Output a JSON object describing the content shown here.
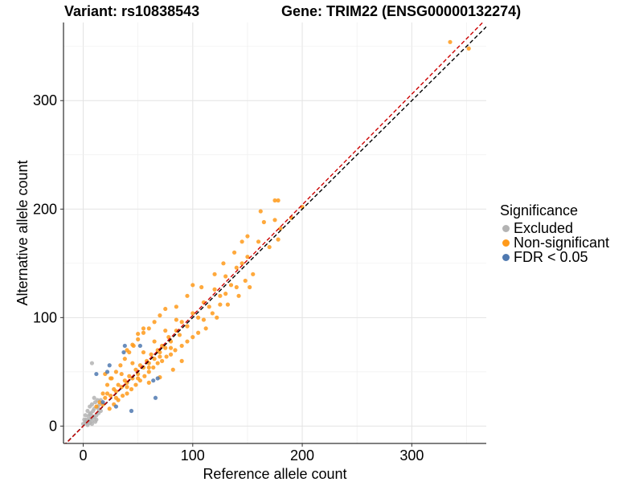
{
  "header": {
    "variant_title": "Variant: rs10838543",
    "gene_title": "Gene: TRIM22 (ENSG00000132274)"
  },
  "chart_data": {
    "type": "scatter",
    "xlabel": "Reference allele count",
    "ylabel": "Alternative allele count",
    "xlim": [
      -18,
      368
    ],
    "ylim": [
      -16,
      372
    ],
    "xticks": [
      0,
      100,
      200,
      300
    ],
    "yticks": [
      0,
      100,
      200,
      300
    ],
    "grid": true,
    "legend": {
      "title": "Significance",
      "position": "right",
      "entries": [
        {
          "label": "Excluded",
          "color": "#b3b3b3"
        },
        {
          "label": "Non-significant",
          "color": "#ff9a1a"
        },
        {
          "label": "FDR < 0.05",
          "color": "#4f79b0"
        }
      ]
    },
    "reference_lines": [
      {
        "type": "identity",
        "description": "y = x",
        "color": "#000000",
        "style": "dashed"
      },
      {
        "type": "fit",
        "slope": 1.02,
        "intercept": 0,
        "color": "#cc0000",
        "style": "dashed"
      }
    ],
    "series": [
      {
        "name": "Excluded",
        "color": "#b3b3b3",
        "points": [
          [
            0,
            2
          ],
          [
            2,
            4
          ],
          [
            3,
            6
          ],
          [
            4,
            1
          ],
          [
            5,
            9
          ],
          [
            6,
            3
          ],
          [
            7,
            12
          ],
          [
            8,
            5
          ],
          [
            9,
            14
          ],
          [
            10,
            8
          ],
          [
            2,
            10
          ],
          [
            4,
            14
          ],
          [
            6,
            18
          ],
          [
            8,
            20
          ],
          [
            10,
            16
          ],
          [
            12,
            10
          ],
          [
            11,
            22
          ],
          [
            13,
            18
          ],
          [
            14,
            12
          ],
          [
            15,
            20
          ],
          [
            16,
            24
          ],
          [
            3,
            3
          ],
          [
            5,
            5
          ],
          [
            7,
            7
          ],
          [
            9,
            9
          ],
          [
            1,
            6
          ],
          [
            6,
            11
          ],
          [
            8,
            2
          ],
          [
            12,
            6
          ],
          [
            14,
            16
          ],
          [
            10,
            26
          ],
          [
            8,
            58
          ],
          [
            16,
            14
          ],
          [
            11,
            4
          ],
          [
            13,
            24
          ]
        ]
      },
      {
        "name": "Non-significant",
        "color": "#ff9a1a",
        "points": [
          [
            12,
            18
          ],
          [
            15,
            22
          ],
          [
            18,
            20
          ],
          [
            20,
            26
          ],
          [
            22,
            30
          ],
          [
            25,
            28
          ],
          [
            28,
            34
          ],
          [
            30,
            32
          ],
          [
            32,
            38
          ],
          [
            35,
            36
          ],
          [
            38,
            42
          ],
          [
            40,
            40
          ],
          [
            42,
            46
          ],
          [
            45,
            44
          ],
          [
            48,
            52
          ],
          [
            50,
            48
          ],
          [
            52,
            56
          ],
          [
            55,
            54
          ],
          [
            58,
            60
          ],
          [
            60,
            58
          ],
          [
            62,
            66
          ],
          [
            65,
            62
          ],
          [
            68,
            70
          ],
          [
            70,
            68
          ],
          [
            72,
            74
          ],
          [
            75,
            72
          ],
          [
            78,
            82
          ],
          [
            80,
            78
          ],
          [
            85,
            88
          ],
          [
            88,
            84
          ],
          [
            90,
            96
          ],
          [
            95,
            92
          ],
          [
            100,
            104
          ],
          [
            105,
            100
          ],
          [
            110,
            114
          ],
          [
            115,
            110
          ],
          [
            120,
            126
          ],
          [
            125,
            120
          ],
          [
            130,
            138
          ],
          [
            135,
            130
          ],
          [
            140,
            146
          ],
          [
            145,
            150
          ],
          [
            150,
            156
          ],
          [
            160,
            170
          ],
          [
            170,
            165
          ],
          [
            175,
            190
          ],
          [
            178,
            172
          ],
          [
            180,
            182
          ],
          [
            190,
            192
          ],
          [
            200,
            202
          ],
          [
            175,
            208
          ],
          [
            178,
            208
          ],
          [
            162,
            198
          ],
          [
            165,
            188
          ],
          [
            335,
            354
          ],
          [
            352,
            348
          ],
          [
            18,
            30
          ],
          [
            22,
            38
          ],
          [
            26,
            44
          ],
          [
            30,
            50
          ],
          [
            34,
            56
          ],
          [
            38,
            62
          ],
          [
            42,
            68
          ],
          [
            46,
            74
          ],
          [
            50,
            80
          ],
          [
            55,
            86
          ],
          [
            60,
            90
          ],
          [
            65,
            96
          ],
          [
            70,
            102
          ],
          [
            75,
            108
          ],
          [
            24,
            16
          ],
          [
            28,
            20
          ],
          [
            32,
            24
          ],
          [
            36,
            28
          ],
          [
            40,
            30
          ],
          [
            44,
            34
          ],
          [
            48,
            38
          ],
          [
            52,
            42
          ],
          [
            56,
            46
          ],
          [
            60,
            50
          ],
          [
            64,
            54
          ],
          [
            68,
            58
          ],
          [
            72,
            60
          ],
          [
            76,
            64
          ],
          [
            80,
            66
          ],
          [
            84,
            70
          ],
          [
            90,
            74
          ],
          [
            95,
            78
          ],
          [
            100,
            82
          ],
          [
            105,
            86
          ],
          [
            40,
            70
          ],
          [
            45,
            75
          ],
          [
            50,
            85
          ],
          [
            55,
            90
          ],
          [
            20,
            48
          ],
          [
            25,
            44
          ],
          [
            60,
            40
          ],
          [
            70,
            45
          ],
          [
            82,
            52
          ],
          [
            90,
            60
          ],
          [
            110,
            98
          ],
          [
            118,
            104
          ],
          [
            125,
            112
          ],
          [
            130,
            122
          ],
          [
            140,
            128
          ],
          [
            148,
            134
          ],
          [
            155,
            140
          ],
          [
            108,
            128
          ],
          [
            120,
            140
          ],
          [
            128,
            150
          ],
          [
            138,
            160
          ],
          [
            145,
            170
          ],
          [
            150,
            175
          ],
          [
            100,
            130
          ],
          [
            95,
            120
          ],
          [
            85,
            110
          ],
          [
            112,
            90
          ],
          [
            122,
            100
          ],
          [
            132,
            112
          ],
          [
            142,
            120
          ],
          [
            152,
            128
          ],
          [
            35,
            48
          ],
          [
            45,
            58
          ],
          [
            55,
            68
          ],
          [
            65,
            78
          ],
          [
            75,
            88
          ],
          [
            85,
            98
          ],
          [
            30,
            26
          ],
          [
            40,
            36
          ],
          [
            50,
            44
          ],
          [
            60,
            54
          ],
          [
            70,
            64
          ],
          [
            80,
            72
          ]
        ]
      },
      {
        "name": "FDR < 0.05",
        "color": "#4f79b0",
        "points": [
          [
            12,
            48
          ],
          [
            22,
            50
          ],
          [
            24,
            56
          ],
          [
            37,
            68
          ],
          [
            38,
            74
          ],
          [
            52,
            74
          ],
          [
            68,
            44
          ],
          [
            64,
            42
          ],
          [
            66,
            26
          ],
          [
            30,
            18
          ],
          [
            44,
            14
          ],
          [
            18,
            22
          ]
        ]
      }
    ]
  }
}
